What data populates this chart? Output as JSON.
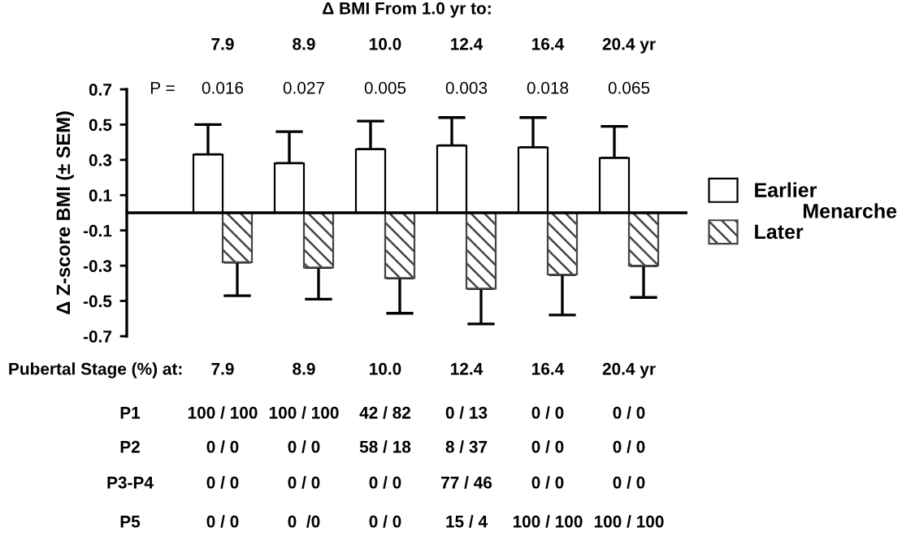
{
  "chart_data": {
    "type": "bar",
    "title": "Δ BMI From 1.0 yr to:",
    "ylabel": "Δ Z-score BMI (± SEM)",
    "legend_title": "Menarche",
    "categories": [
      "7.9",
      "8.9",
      "10.0",
      "12.4",
      "16.4",
      "20.4 yr"
    ],
    "series": [
      {
        "name": "Earlier",
        "color": "#ffffff",
        "values": [
          0.33,
          0.28,
          0.36,
          0.38,
          0.37,
          0.31
        ],
        "errors": [
          0.17,
          0.18,
          0.16,
          0.16,
          0.17,
          0.18
        ]
      },
      {
        "name": "Later",
        "color": "#444444",
        "values": [
          -0.28,
          -0.31,
          -0.37,
          -0.43,
          -0.35,
          -0.3
        ],
        "errors": [
          0.19,
          0.18,
          0.2,
          0.2,
          0.23,
          0.18
        ]
      }
    ],
    "ylim": [
      -0.7,
      0.7
    ],
    "yticks": [
      -0.7,
      -0.5,
      -0.3,
      -0.1,
      0.1,
      0.3,
      0.5,
      0.7
    ],
    "grid": false,
    "legend": "right",
    "annotations": [
      "P =",
      "0.016",
      "0.027",
      "0.005",
      "0.003",
      "0.018",
      "0.065",
      "Pubertal Stage (%) at:",
      "P1",
      "100 / 100",
      "100 / 100",
      "42 / 82",
      "0 / 13",
      "0 / 0",
      "0 / 0",
      "P2",
      "0 / 0",
      "0 / 0",
      "58 / 18",
      "8 / 37",
      "0 / 0",
      "0 / 0",
      "P3-P4",
      "0 / 0",
      "0 / 0",
      "0 / 0",
      "77 / 46",
      "0 / 0",
      "0 / 0",
      "P5",
      "0 / 0",
      "0  /0",
      "0 / 0",
      "15 / 4",
      "100 / 100",
      "100 / 100"
    ]
  }
}
